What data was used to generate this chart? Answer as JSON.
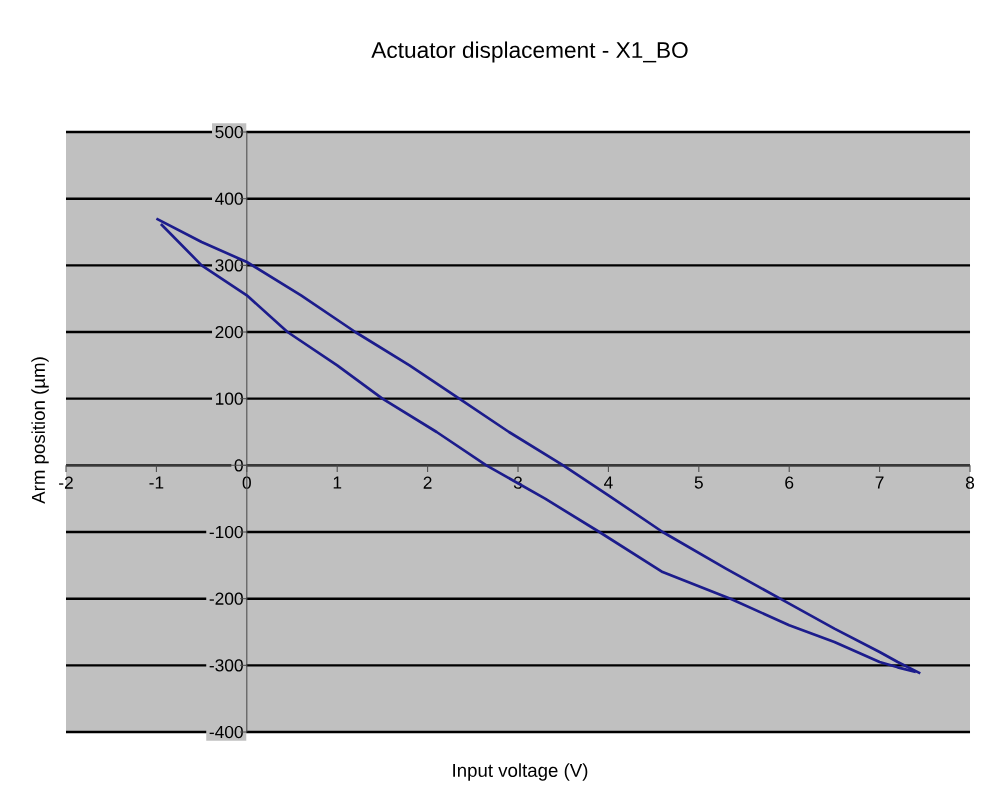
{
  "chart_data": {
    "type": "line",
    "title": "Actuator displacement - X1_BO",
    "xlabel": "Input voltage (V)",
    "ylabel": "Arm position (µm)",
    "series": [
      {
        "color": "#1c1c8c",
        "x": [
          -1,
          -0.5,
          0,
          0.6,
          1.2,
          1.8,
          2.35,
          2.9,
          3.5,
          4.0,
          4.6,
          5.3,
          5.9,
          6.5,
          7.0,
          7.2,
          7.45
        ],
        "values": [
          370,
          335,
          305,
          255,
          200,
          150,
          100,
          50,
          0,
          -45,
          -100,
          -155,
          -200,
          -245,
          -280,
          -295,
          -312
        ]
      },
      {
        "color": "#1c1c8c",
        "x": [
          -0.95,
          -0.5,
          0,
          0.45,
          1.0,
          1.5,
          2.1,
          2.65,
          3.3,
          3.9,
          4.6,
          5.35,
          6.0,
          6.5,
          7.0,
          7.2,
          7.4
        ],
        "values": [
          362,
          300,
          255,
          200,
          150,
          100,
          50,
          0,
          -50,
          -100,
          -160,
          -200,
          -240,
          -265,
          -295,
          -303,
          -310
        ]
      }
    ],
    "xlim": [
      -2,
      8
    ],
    "ylim": [
      -400,
      500
    ],
    "xticks": [
      -2,
      -1,
      0,
      1,
      2,
      3,
      4,
      5,
      6,
      7,
      8
    ],
    "yticks": [
      -400,
      -300,
      -200,
      -100,
      0,
      100,
      200,
      300,
      400,
      500
    ],
    "grid": "y"
  }
}
